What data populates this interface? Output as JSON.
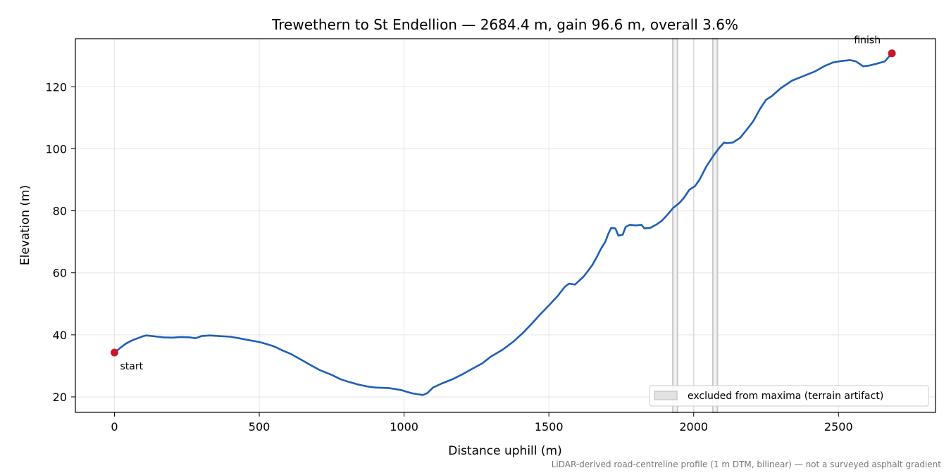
{
  "chart_data": {
    "type": "line",
    "title": "Trewethern to St Endellion — 2684.4 m, gain 96.6 m, overall 3.6%",
    "xlabel": "Distance uphill (m)",
    "ylabel": "Elevation (m)",
    "xlim": [
      -135,
      2835
    ],
    "ylim": [
      15,
      135.5
    ],
    "xticks": [
      0,
      500,
      1000,
      1500,
      2000,
      2500
    ],
    "yticks": [
      20,
      40,
      60,
      80,
      100,
      120
    ],
    "grid": true,
    "legend": {
      "placement": "lower-right",
      "entries": [
        "excluded from maxima (terrain artifact)"
      ]
    },
    "footnote": "LiDAR-derived road-centreline profile (1 m DTM, bilinear) — not a surveyed asphalt gradient",
    "series": [
      {
        "color": "#1f5fb4",
        "points": [
          [
            0,
            34.3
          ],
          [
            10,
            35.0
          ],
          [
            20,
            35.8
          ],
          [
            40,
            37.2
          ],
          [
            60,
            38.2
          ],
          [
            80,
            38.9
          ],
          [
            100,
            39.6
          ],
          [
            110,
            39.8
          ],
          [
            130,
            39.6
          ],
          [
            150,
            39.4
          ],
          [
            170,
            39.2
          ],
          [
            200,
            39.1
          ],
          [
            230,
            39.3
          ],
          [
            260,
            39.2
          ],
          [
            280,
            38.9
          ],
          [
            300,
            39.6
          ],
          [
            330,
            39.8
          ],
          [
            360,
            39.6
          ],
          [
            400,
            39.4
          ],
          [
            430,
            38.9
          ],
          [
            470,
            38.2
          ],
          [
            500,
            37.7
          ],
          [
            530,
            36.9
          ],
          [
            550,
            36.3
          ],
          [
            580,
            35.0
          ],
          [
            610,
            33.8
          ],
          [
            650,
            31.7
          ],
          [
            680,
            30.1
          ],
          [
            710,
            28.6
          ],
          [
            750,
            27.1
          ],
          [
            780,
            25.7
          ],
          [
            810,
            24.8
          ],
          [
            840,
            24.0
          ],
          [
            870,
            23.4
          ],
          [
            900,
            23.0
          ],
          [
            950,
            22.8
          ],
          [
            990,
            22.2
          ],
          [
            1010,
            21.6
          ],
          [
            1030,
            21.1
          ],
          [
            1050,
            20.8
          ],
          [
            1065,
            20.6
          ],
          [
            1080,
            21.2
          ],
          [
            1100,
            23.0
          ],
          [
            1130,
            24.3
          ],
          [
            1170,
            25.8
          ],
          [
            1200,
            27.2
          ],
          [
            1230,
            28.8
          ],
          [
            1270,
            30.8
          ],
          [
            1300,
            33.0
          ],
          [
            1340,
            35.2
          ],
          [
            1380,
            38.0
          ],
          [
            1410,
            40.6
          ],
          [
            1440,
            43.5
          ],
          [
            1470,
            46.6
          ],
          [
            1500,
            49.5
          ],
          [
            1530,
            52.5
          ],
          [
            1555,
            55.5
          ],
          [
            1570,
            56.5
          ],
          [
            1590,
            56.2
          ],
          [
            1620,
            58.8
          ],
          [
            1650,
            62.5
          ],
          [
            1665,
            65.0
          ],
          [
            1680,
            67.8
          ],
          [
            1695,
            70.0
          ],
          [
            1705,
            72.5
          ],
          [
            1715,
            74.5
          ],
          [
            1730,
            74.3
          ],
          [
            1740,
            72.0
          ],
          [
            1755,
            72.3
          ],
          [
            1765,
            74.8
          ],
          [
            1780,
            75.5
          ],
          [
            1800,
            75.3
          ],
          [
            1820,
            75.5
          ],
          [
            1830,
            74.3
          ],
          [
            1850,
            74.5
          ],
          [
            1870,
            75.5
          ],
          [
            1890,
            76.8
          ],
          [
            1910,
            78.8
          ],
          [
            1930,
            81.0
          ],
          [
            1950,
            82.5
          ],
          [
            1965,
            84.0
          ],
          [
            1985,
            86.8
          ],
          [
            2005,
            88.0
          ],
          [
            2020,
            90.0
          ],
          [
            2045,
            94.5
          ],
          [
            2070,
            98.0
          ],
          [
            2090,
            100.5
          ],
          [
            2105,
            102.0
          ],
          [
            2115,
            101.8
          ],
          [
            2135,
            102.0
          ],
          [
            2160,
            103.5
          ],
          [
            2180,
            105.8
          ],
          [
            2205,
            108.8
          ],
          [
            2230,
            113.0
          ],
          [
            2250,
            115.8
          ],
          [
            2270,
            117.0
          ],
          [
            2300,
            119.5
          ],
          [
            2340,
            122.0
          ],
          [
            2380,
            123.5
          ],
          [
            2420,
            125.0
          ],
          [
            2450,
            126.6
          ],
          [
            2480,
            127.8
          ],
          [
            2510,
            128.3
          ],
          [
            2540,
            128.6
          ],
          [
            2560,
            128.2
          ],
          [
            2585,
            126.6
          ],
          [
            2605,
            126.8
          ],
          [
            2630,
            127.4
          ],
          [
            2660,
            128.2
          ],
          [
            2684.4,
            130.8
          ]
        ]
      }
    ],
    "excluded_ranges": [
      [
        1928,
        1944
      ],
      [
        2066,
        2082
      ]
    ],
    "excluded_lines": [
      2000
    ],
    "markers": [
      {
        "label": "start",
        "x": 0,
        "y": 34.3,
        "color": "#c8182a"
      },
      {
        "label": "finish",
        "x": 2684.4,
        "y": 130.8,
        "color": "#c8182a"
      }
    ]
  }
}
